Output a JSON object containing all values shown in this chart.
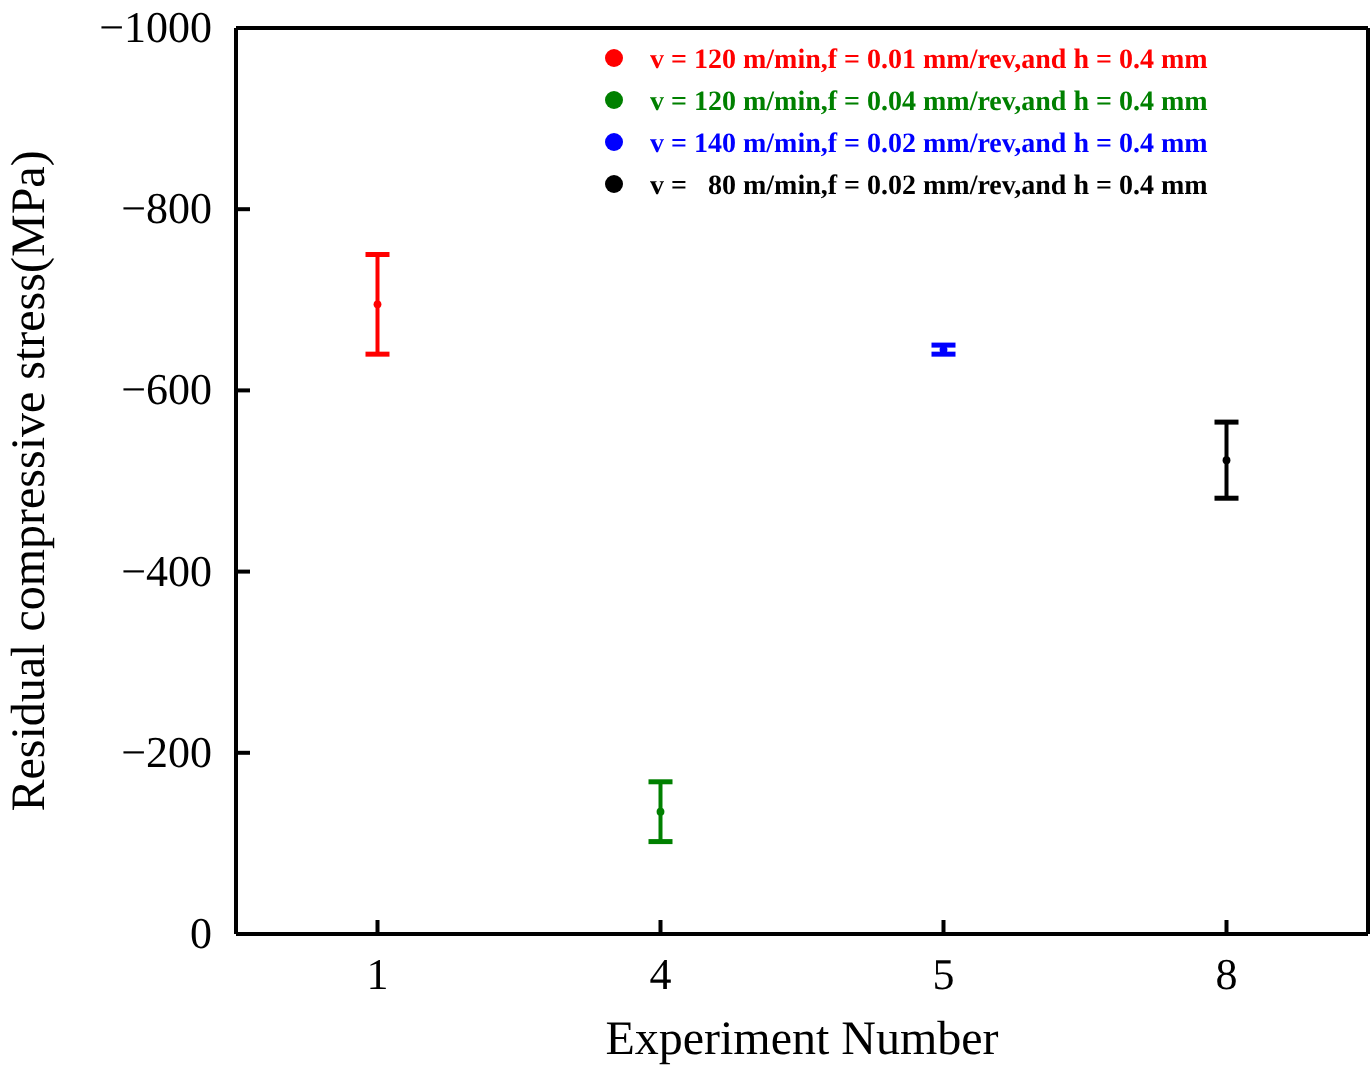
{
  "chart_data": {
    "type": "scatter",
    "xlabel": "Experiment Number",
    "ylabel": "Residual compressive stress(MPa)",
    "categories": [
      "1",
      "4",
      "5",
      "8"
    ],
    "ylim": [
      0,
      -1000
    ],
    "yticks": [
      0,
      -200,
      -400,
      -600,
      -800,
      -1000
    ],
    "marker": "circle",
    "legend": "top right",
    "grid": false,
    "series": [
      {
        "name": "v = 120 m/min,f = 0.01 mm/rev,and h = 0.4 mm",
        "color": "#ff0000",
        "values": [
          -695,
          null,
          null,
          null
        ],
        "errors": [
          55,
          null,
          null,
          null
        ]
      },
      {
        "name": "v = 120 m/min,f = 0.04 mm/rev,and h = 0.4 mm",
        "color": "#008000",
        "values": [
          null,
          -135,
          null,
          null
        ],
        "errors": [
          null,
          33,
          null,
          null
        ]
      },
      {
        "name": "v = 140 m/min,f = 0.02 mm/rev,and h = 0.4 mm",
        "color": "#0000ff",
        "values": [
          null,
          null,
          -645,
          null
        ],
        "errors": [
          null,
          null,
          5,
          null
        ]
      },
      {
        "name": "v =   80 m/min,f = 0.02 mm/rev,and h = 0.4 mm",
        "color": "#000000",
        "values": [
          null,
          null,
          null,
          -523
        ],
        "errors": [
          null,
          null,
          null,
          42
        ]
      }
    ]
  }
}
